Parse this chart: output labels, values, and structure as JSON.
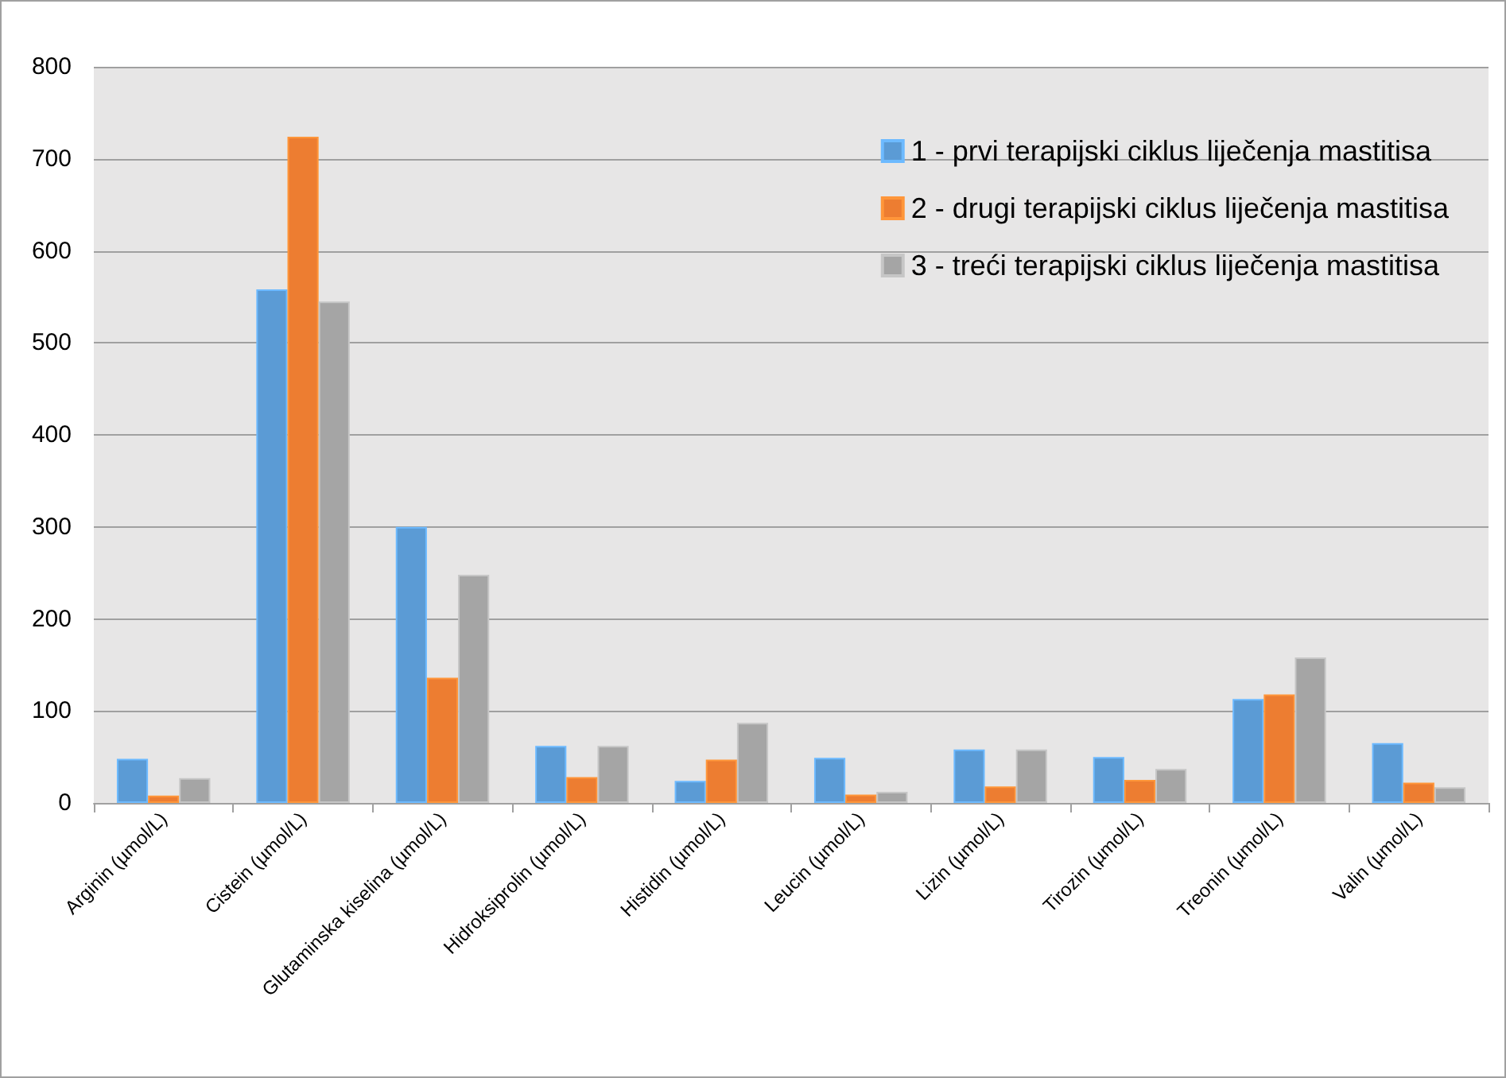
{
  "chart_data": {
    "type": "bar",
    "categories": [
      "Arginin (µmol/L)",
      "Cistein (µmol/L)",
      "Glutaminska kiselina (µmol/L)",
      "Hidroksiprolin (µmol/L)",
      "Histidin (µmol/L)",
      "Leucin (µmol/L)",
      "Lizin (µmol/L)",
      "Tirozin (µmol/L)",
      "Treonin (µmol/L)",
      "Valin (µmol/L)"
    ],
    "series": [
      {
        "name": "1 - prvi terapijski ciklus liječenja mastitisa",
        "color": "#5b9bd5",
        "values": [
          48,
          558,
          300,
          62,
          24,
          49,
          58,
          50,
          113,
          65
        ]
      },
      {
        "name": "2 - drugi terapijski ciklus liječenja mastitisa",
        "color": "#ed7d31",
        "values": [
          8,
          724,
          136,
          28,
          47,
          9,
          18,
          25,
          118,
          22
        ]
      },
      {
        "name": "3 - treći terapijski ciklus liječenja mastitisa",
        "color": "#a5a5a5",
        "values": [
          27,
          545,
          248,
          62,
          87,
          12,
          58,
          37,
          158,
          17
        ]
      }
    ],
    "ylim": [
      0,
      800
    ],
    "yticks": [
      0,
      100,
      200,
      300,
      400,
      500,
      600,
      700,
      800
    ],
    "grid": "y",
    "legend": "top right"
  }
}
